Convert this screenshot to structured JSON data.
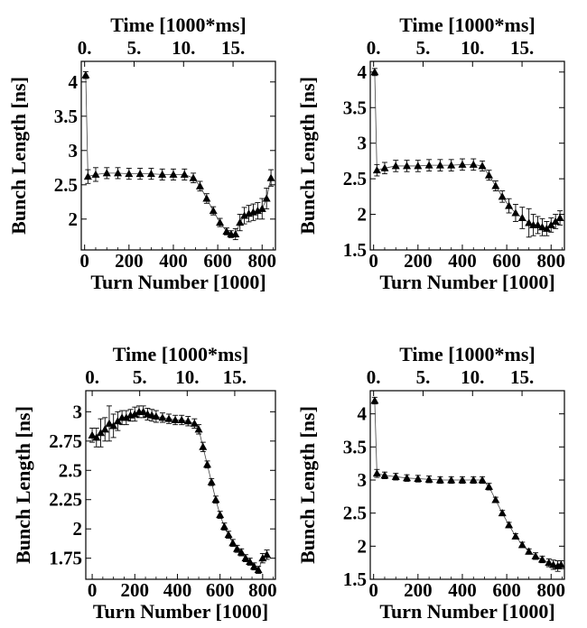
{
  "chart_data": [
    {
      "type": "scatter",
      "panel": "top-left",
      "xlabel": "Turn Number [1000]",
      "ylabel": "Bunch Length [ns]",
      "x2label": "Time [1000*ms]",
      "xlim": [
        -15,
        860
      ],
      "ylim": [
        1.55,
        4.3
      ],
      "x_ticks": [
        0,
        200,
        400,
        600,
        800
      ],
      "x_tick_labels": [
        "0",
        "200",
        "400",
        "600",
        "800"
      ],
      "y_ticks": [
        2,
        2.5,
        3,
        3.5,
        4
      ],
      "y_tick_labels": [
        "2",
        "2.5",
        "3",
        "3.5",
        "4"
      ],
      "x2_ticks": [
        0,
        5,
        10,
        15
      ],
      "x2_tick_labels": [
        "0.",
        "5.",
        "10.",
        "15."
      ],
      "grid": false,
      "marker": "triangle",
      "x": [
        5,
        15,
        50,
        100,
        150,
        200,
        250,
        300,
        350,
        400,
        450,
        490,
        520,
        550,
        580,
        610,
        640,
        660,
        680,
        700,
        720,
        740,
        760,
        780,
        800,
        820,
        840
      ],
      "y": [
        4.1,
        2.62,
        2.65,
        2.67,
        2.67,
        2.66,
        2.66,
        2.66,
        2.65,
        2.65,
        2.65,
        2.6,
        2.48,
        2.3,
        2.12,
        1.95,
        1.82,
        1.78,
        1.78,
        1.95,
        2.05,
        2.08,
        2.1,
        2.12,
        2.15,
        2.3,
        2.6
      ],
      "err": [
        0.05,
        0.1,
        0.1,
        0.08,
        0.08,
        0.08,
        0.08,
        0.08,
        0.08,
        0.08,
        0.08,
        0.07,
        0.07,
        0.07,
        0.06,
        0.06,
        0.05,
        0.05,
        0.08,
        0.12,
        0.12,
        0.12,
        0.12,
        0.12,
        0.15,
        0.15,
        0.12
      ]
    },
    {
      "type": "scatter",
      "panel": "top-right",
      "xlabel": "Turn Number [1000]",
      "ylabel": "Bunch Length [ns]",
      "x2label": "Time [1000*ms]",
      "xlim": [
        -15,
        860
      ],
      "ylim": [
        1.5,
        4.15
      ],
      "x_ticks": [
        0,
        200,
        400,
        600,
        800
      ],
      "x_tick_labels": [
        "0",
        "200",
        "400",
        "600",
        "800"
      ],
      "y_ticks": [
        1.5,
        2,
        2.5,
        3,
        3.5,
        4
      ],
      "y_tick_labels": [
        "1.5",
        "2",
        "2.5",
        "3",
        "3.5",
        "4"
      ],
      "x2_ticks": [
        0,
        5,
        10,
        15
      ],
      "x2_tick_labels": [
        "0.",
        "5.",
        "10.",
        "15."
      ],
      "grid": false,
      "marker": "triangle",
      "x": [
        5,
        15,
        50,
        100,
        150,
        200,
        250,
        300,
        350,
        400,
        450,
        490,
        520,
        550,
        580,
        610,
        640,
        670,
        700,
        720,
        740,
        760,
        780,
        800,
        820,
        840
      ],
      "y": [
        4.0,
        2.62,
        2.65,
        2.68,
        2.68,
        2.68,
        2.69,
        2.69,
        2.69,
        2.7,
        2.7,
        2.68,
        2.55,
        2.4,
        2.25,
        2.12,
        2.02,
        1.95,
        1.88,
        1.85,
        1.85,
        1.82,
        1.8,
        1.85,
        1.9,
        1.95
      ],
      "err": [
        0.05,
        0.08,
        0.08,
        0.08,
        0.08,
        0.08,
        0.08,
        0.08,
        0.08,
        0.08,
        0.08,
        0.07,
        0.07,
        0.07,
        0.08,
        0.1,
        0.12,
        0.15,
        0.2,
        0.15,
        0.12,
        0.12,
        0.1,
        0.1,
        0.1,
        0.1
      ]
    },
    {
      "type": "scatter",
      "panel": "bottom-left",
      "xlabel": "Turn Number [1000]",
      "ylabel": "Bunch Length [ns]",
      "x2label": "Time [1000*ms]",
      "xlim": [
        -30,
        860
      ],
      "ylim": [
        1.57,
        3.18
      ],
      "x_ticks": [
        0,
        200,
        400,
        600,
        800
      ],
      "x_tick_labels": [
        "0",
        "200",
        "400",
        "600",
        "800"
      ],
      "y_ticks": [
        1.75,
        2,
        2.25,
        2.5,
        2.75,
        3
      ],
      "y_tick_labels": [
        "1.75",
        "2",
        "2.25",
        "2.5",
        "2.75",
        "3"
      ],
      "x2_ticks": [
        0,
        5,
        10,
        15
      ],
      "x2_tick_labels": [
        "0.",
        "5.",
        "10.",
        "15."
      ],
      "grid": false,
      "marker": "triangle",
      "x": [
        0,
        20,
        40,
        60,
        80,
        100,
        120,
        140,
        160,
        180,
        200,
        220,
        240,
        260,
        280,
        300,
        330,
        360,
        390,
        420,
        450,
        480,
        500,
        520,
        540,
        560,
        580,
        600,
        620,
        640,
        660,
        680,
        700,
        720,
        740,
        760,
        780,
        800,
        820
      ],
      "y": [
        2.8,
        2.78,
        2.82,
        2.85,
        2.9,
        2.88,
        2.92,
        2.95,
        2.95,
        2.97,
        2.98,
        3.0,
        3.0,
        2.98,
        2.97,
        2.96,
        2.95,
        2.94,
        2.93,
        2.93,
        2.92,
        2.9,
        2.85,
        2.7,
        2.55,
        2.4,
        2.25,
        2.12,
        2.02,
        1.95,
        1.88,
        1.83,
        1.8,
        1.75,
        1.72,
        1.68,
        1.65,
        1.75,
        1.78
      ],
      "err": [
        0.06,
        0.08,
        0.12,
        0.1,
        0.15,
        0.1,
        0.08,
        0.06,
        0.06,
        0.05,
        0.06,
        0.05,
        0.05,
        0.05,
        0.05,
        0.05,
        0.04,
        0.04,
        0.04,
        0.04,
        0.04,
        0.04,
        0.04,
        0.04,
        0.03,
        0.03,
        0.03,
        0.03,
        0.03,
        0.03,
        0.03,
        0.03,
        0.03,
        0.03,
        0.03,
        0.03,
        0.03,
        0.04,
        0.04
      ]
    },
    {
      "type": "scatter",
      "panel": "bottom-right",
      "xlabel": "Turn Number [1000]",
      "ylabel": "Bunch Length [ns]",
      "x2label": "Time [1000*ms]",
      "xlim": [
        -15,
        860
      ],
      "ylim": [
        1.5,
        4.35
      ],
      "x_ticks": [
        0,
        200,
        400,
        600,
        800
      ],
      "x_tick_labels": [
        "0",
        "200",
        "400",
        "600",
        "800"
      ],
      "y_ticks": [
        1.5,
        2,
        2.5,
        3,
        3.5,
        4
      ],
      "y_tick_labels": [
        "1.5",
        "2",
        "2.5",
        "3",
        "3.5",
        "4"
      ],
      "x2_ticks": [
        0,
        5,
        10,
        15
      ],
      "x2_tick_labels": [
        "0.",
        "5.",
        "10.",
        "15."
      ],
      "grid": false,
      "marker": "triangle",
      "x": [
        5,
        15,
        50,
        100,
        150,
        200,
        250,
        300,
        350,
        400,
        450,
        490,
        520,
        550,
        580,
        610,
        640,
        670,
        700,
        730,
        760,
        790,
        810,
        830,
        845
      ],
      "y": [
        4.2,
        3.1,
        3.07,
        3.05,
        3.03,
        3.02,
        3.01,
        3.0,
        3.0,
        3.0,
        3.0,
        3.0,
        2.9,
        2.7,
        2.5,
        2.32,
        2.15,
        2.02,
        1.92,
        1.85,
        1.8,
        1.75,
        1.72,
        1.7,
        1.72
      ],
      "err": [
        0.05,
        0.06,
        0.05,
        0.05,
        0.05,
        0.05,
        0.05,
        0.05,
        0.05,
        0.05,
        0.05,
        0.05,
        0.05,
        0.04,
        0.04,
        0.04,
        0.04,
        0.04,
        0.04,
        0.05,
        0.05,
        0.06,
        0.07,
        0.08,
        0.06
      ]
    }
  ]
}
